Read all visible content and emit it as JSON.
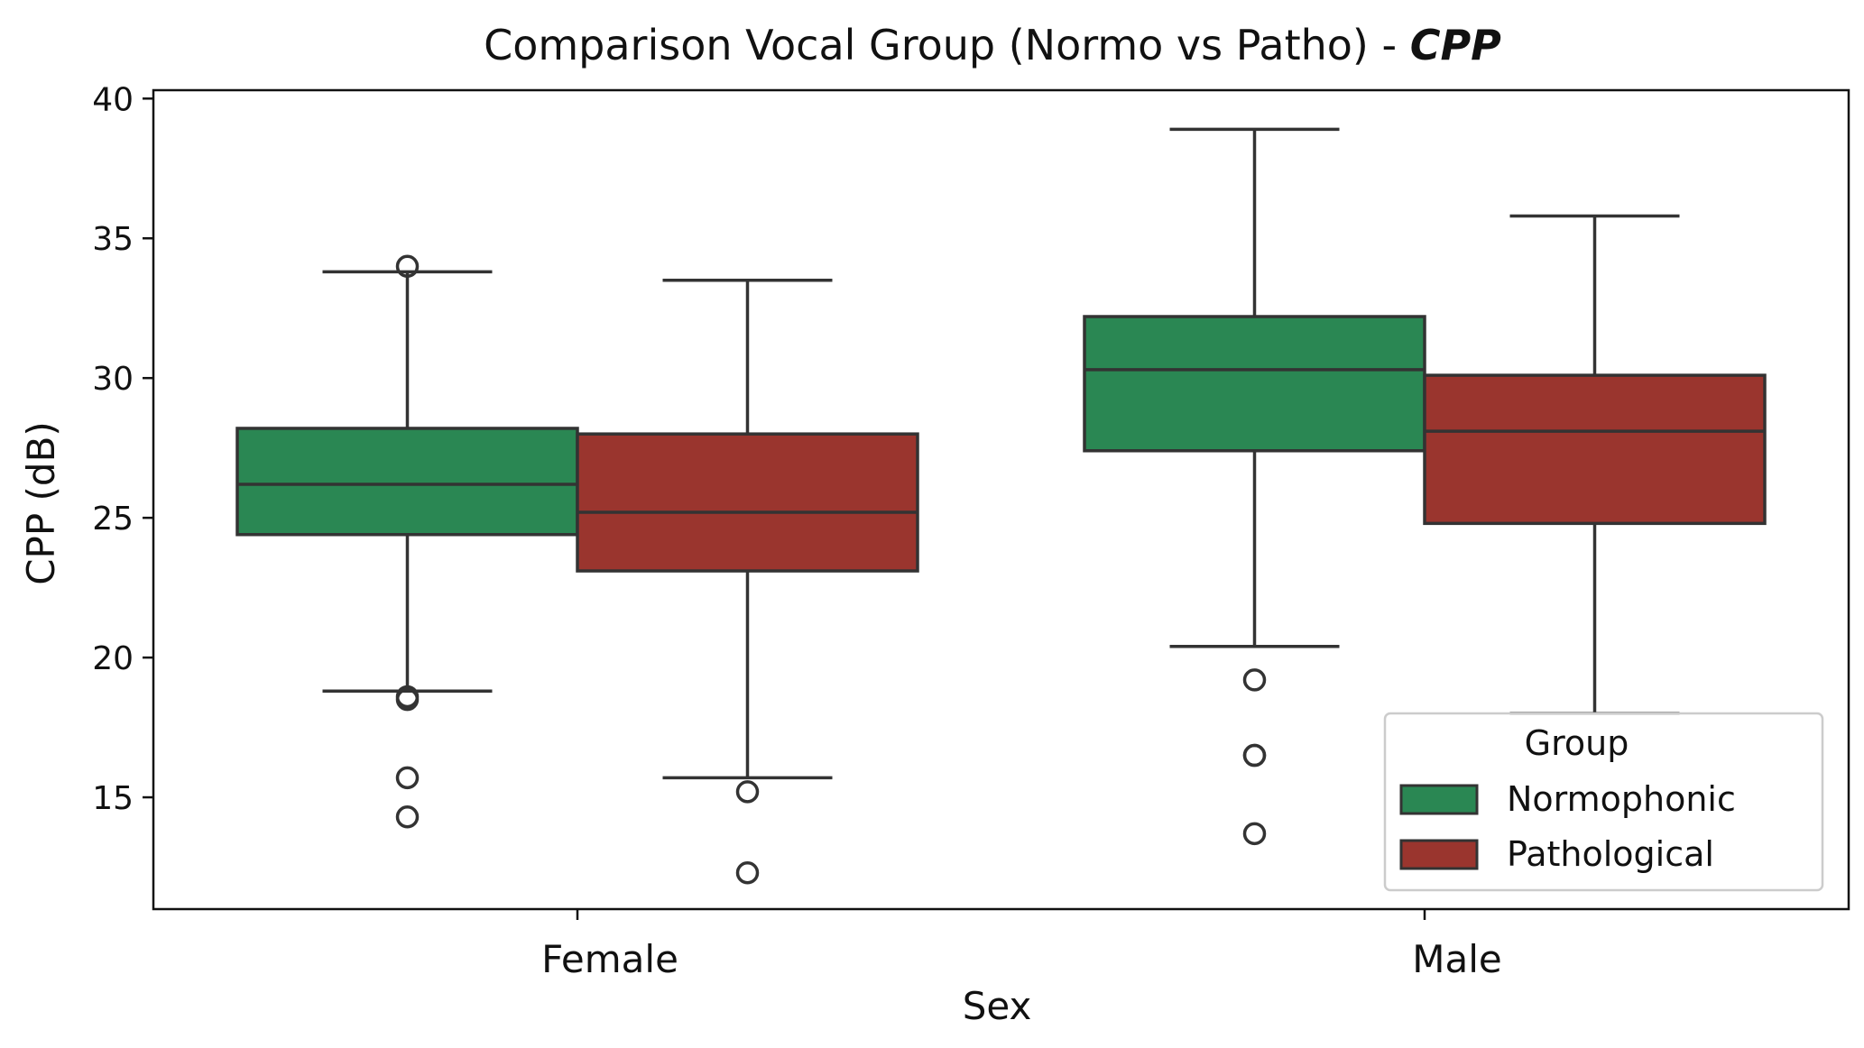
{
  "chart_data": {
    "type": "box",
    "title": "Comparison Vocal Group (Normo vs Patho) - ",
    "title_emphasis": "CPP",
    "xlabel": "Sex",
    "ylabel": "CPP (dB)",
    "ylim": [
      11.0,
      40.3
    ],
    "yticks": [
      15,
      20,
      25,
      30,
      35,
      40
    ],
    "categories": [
      "Female",
      "Male"
    ],
    "legend": {
      "title": "Group",
      "position": "lower-right"
    },
    "series": [
      {
        "name": "Normophonic",
        "color": "#2a8753",
        "boxes": [
          {
            "category": "Female",
            "whisker_low": 18.8,
            "q1": 24.4,
            "median": 26.2,
            "q3": 28.2,
            "whisker_high": 33.8,
            "outliers": [
              34.0,
              18.6,
              18.5,
              15.7,
              14.3
            ]
          },
          {
            "category": "Male",
            "whisker_low": 20.4,
            "q1": 27.4,
            "median": 30.3,
            "q3": 32.2,
            "whisker_high": 38.9,
            "outliers": [
              19.2,
              16.5,
              16.5,
              13.7
            ]
          }
        ]
      },
      {
        "name": "Pathological",
        "color": "#9a352e",
        "boxes": [
          {
            "category": "Female",
            "whisker_low": 15.7,
            "q1": 23.1,
            "median": 25.2,
            "q3": 28.0,
            "whisker_high": 33.5,
            "outliers": [
              15.2,
              12.3
            ]
          },
          {
            "category": "Male",
            "whisker_low": 18.0,
            "q1": 24.8,
            "median": 28.1,
            "q3": 30.1,
            "whisker_high": 35.8,
            "outliers": []
          }
        ]
      }
    ],
    "line_color": "#333333"
  }
}
